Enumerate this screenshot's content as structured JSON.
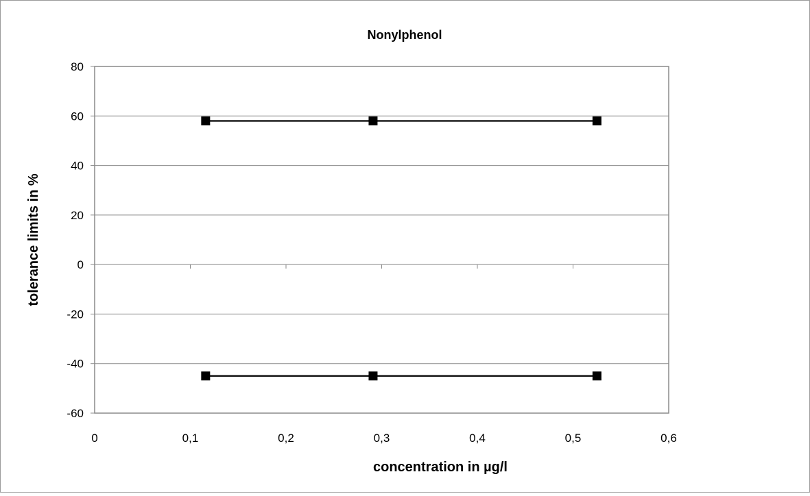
{
  "chart_data": {
    "type": "line",
    "title": "Nonylphenol",
    "xlabel": "concentration in µg/l",
    "ylabel": "tolerance limits in %",
    "xlim": [
      0,
      0.6
    ],
    "ylim": [
      -60,
      80
    ],
    "x_ticks": [
      {
        "value": 0,
        "label": "0"
      },
      {
        "value": 0.1,
        "label": "0,1"
      },
      {
        "value": 0.2,
        "label": "0,2"
      },
      {
        "value": 0.3,
        "label": "0,3"
      },
      {
        "value": 0.4,
        "label": "0,4"
      },
      {
        "value": 0.5,
        "label": "0,5"
      },
      {
        "value": 0.6,
        "label": "0,6"
      }
    ],
    "y_ticks": [
      {
        "value": 80,
        "label": "80"
      },
      {
        "value": 60,
        "label": "60"
      },
      {
        "value": 40,
        "label": "40"
      },
      {
        "value": 20,
        "label": "20"
      },
      {
        "value": 0,
        "label": "0"
      },
      {
        "value": -20,
        "label": "-20"
      },
      {
        "value": -40,
        "label": "-40"
      },
      {
        "value": -60,
        "label": "-60"
      }
    ],
    "grid": "horizontal",
    "legend": "none",
    "series": [
      {
        "x": [
          0.116,
          0.291,
          0.525
        ],
        "y": [
          58,
          58,
          58
        ],
        "color": "#000000",
        "marker": "square"
      },
      {
        "x": [
          0.116,
          0.291,
          0.525
        ],
        "y": [
          -45,
          -45,
          -45
        ],
        "color": "#000000",
        "marker": "square"
      }
    ]
  }
}
